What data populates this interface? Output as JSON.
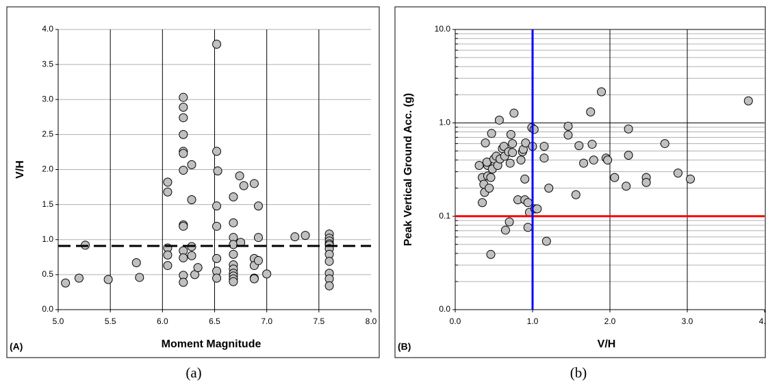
{
  "chart_data": [
    {
      "type": "scatter",
      "xlabel": "Moment Magnitude",
      "ylabel": "V/H",
      "panel_label": "(A)",
      "caption": "(a)",
      "x": [
        5.07,
        5.2,
        5.26,
        5.48,
        5.75,
        5.78,
        6.05,
        6.05,
        6.05,
        6.05,
        6.05,
        6.2,
        6.2,
        6.2,
        6.2,
        6.2,
        6.2,
        6.2,
        6.2,
        6.2,
        6.2,
        6.2,
        6.2,
        6.2,
        6.28,
        6.28,
        6.28,
        6.28,
        6.31,
        6.34,
        6.52,
        6.52,
        6.53,
        6.52,
        6.52,
        6.52,
        6.52,
        6.52,
        6.68,
        6.68,
        6.68,
        6.68,
        6.68,
        6.68,
        6.68,
        6.68,
        6.68,
        6.68,
        6.68,
        6.74,
        6.75,
        6.78,
        6.88,
        6.88,
        6.88,
        6.88,
        6.88,
        6.92,
        6.92,
        6.92,
        7.0,
        7.27,
        7.37,
        7.6,
        7.6,
        7.6,
        7.6,
        7.6,
        7.6,
        7.6,
        7.6,
        7.6,
        7.6,
        7.6
      ],
      "values": [
        0.38,
        0.45,
        0.92,
        0.43,
        0.67,
        0.46,
        1.82,
        1.68,
        0.88,
        0.78,
        0.63,
        3.03,
        2.89,
        2.74,
        2.5,
        2.26,
        2.23,
        1.99,
        1.21,
        1.19,
        0.84,
        0.74,
        0.49,
        0.39,
        2.07,
        1.57,
        0.9,
        0.77,
        0.5,
        0.6,
        3.79,
        2.26,
        1.98,
        1.48,
        1.19,
        0.73,
        0.55,
        0.45,
        1.61,
        1.24,
        1.03,
        0.93,
        0.79,
        0.64,
        0.58,
        0.52,
        0.48,
        0.44,
        0.4,
        1.91,
        0.96,
        1.77,
        1.8,
        0.73,
        0.63,
        0.45,
        0.44,
        1.48,
        1.03,
        0.7,
        0.51,
        1.04,
        1.06,
        1.08,
        1.02,
        0.98,
        0.94,
        0.92,
        0.87,
        0.79,
        0.69,
        0.52,
        0.44,
        0.34
      ],
      "color": "#c0c0c0",
      "xlim": [
        5,
        8
      ],
      "ylim": [
        0,
        4
      ],
      "xticks": [
        {
          "value": 5,
          "label": "5.0"
        },
        5.5,
        {
          "value": 6,
          "label": "6.0"
        },
        6.5,
        {
          "value": 7,
          "label": "7.0"
        },
        7.5,
        {
          "value": 8,
          "label": "8.0"
        }
      ],
      "yticks": [
        {
          "value": 0,
          "label": "0.0"
        },
        0.5,
        {
          "value": 1,
          "label": "1.0"
        },
        1.5,
        {
          "value": 2,
          "label": "2.0"
        },
        2.5,
        {
          "value": 3,
          "label": "3.0"
        },
        3.5,
        {
          "value": 4,
          "label": "4.0"
        }
      ],
      "log_y": false,
      "xgrid_color": "#000000",
      "ygrid_color": "#b0b0b0",
      "minor_grid": false,
      "hlines": [
        {
          "value": 0.91,
          "color": "#000000",
          "dashed": true
        }
      ],
      "vlines": []
    },
    {
      "type": "scatter",
      "xlabel": "V/H",
      "ylabel": "Peak Vertical Ground Acc. (g)",
      "panel_label": "(B)",
      "caption": "(b)",
      "x": [
        0.31,
        0.35,
        0.37,
        0.35,
        0.38,
        0.39,
        0.42,
        0.42,
        0.41,
        0.44,
        0.46,
        0.47,
        0.48,
        0.5,
        0.46,
        0.53,
        0.55,
        0.57,
        0.58,
        0.61,
        0.63,
        0.64,
        0.65,
        0.69,
        0.71,
        0.7,
        0.72,
        0.74,
        0.74,
        0.76,
        0.81,
        0.87,
        0.88,
        0.85,
        0.9,
        0.9,
        0.94,
        0.91,
        0.94,
        0.96,
        0.99,
        1.02,
        1.0,
        1.03,
        1.06,
        1.15,
        1.15,
        1.18,
        1.21,
        1.46,
        1.46,
        1.56,
        1.6,
        1.66,
        1.75,
        1.77,
        1.79,
        1.89,
        1.95,
        1.97,
        2.06,
        2.21,
        2.24,
        2.24,
        2.47,
        2.47,
        2.71,
        2.88,
        3.04,
        3.79
      ],
      "values": [
        0.35,
        0.26,
        0.22,
        0.14,
        0.18,
        0.61,
        0.35,
        0.27,
        0.38,
        0.2,
        0.26,
        0.77,
        0.32,
        0.41,
        0.039,
        0.44,
        0.35,
        1.07,
        0.41,
        0.53,
        0.56,
        0.44,
        0.071,
        0.49,
        0.37,
        0.087,
        0.75,
        0.6,
        0.48,
        1.27,
        0.15,
        0.49,
        0.52,
        0.4,
        0.25,
        0.15,
        0.14,
        0.61,
        0.076,
        0.11,
        0.89,
        0.85,
        0.56,
        0.12,
        0.12,
        0.56,
        0.42,
        0.054,
        0.2,
        0.92,
        0.74,
        0.17,
        0.57,
        0.37,
        1.31,
        0.59,
        0.4,
        2.15,
        0.42,
        0.4,
        0.26,
        0.21,
        0.86,
        0.45,
        0.26,
        0.23,
        0.6,
        0.29,
        0.25,
        1.72
      ],
      "color": "#c0c0c0",
      "xlim": [
        0,
        4
      ],
      "ylim": [
        0.01,
        10
      ],
      "xticks": [
        {
          "value": 0,
          "label": "0.0"
        },
        {
          "value": 1,
          "label": "1.0"
        },
        {
          "value": 2,
          "label": "2.0"
        },
        {
          "value": 3,
          "label": "3.0"
        },
        {
          "value": 4,
          "label": "4.0"
        }
      ],
      "yticks": [
        {
          "value": 0.01,
          "label": "0.0"
        },
        0.1,
        {
          "value": 1,
          "label": "1.0"
        },
        {
          "value": 10,
          "label": "10.0"
        }
      ],
      "log_y": true,
      "xgrid_color": "#000000",
      "ygrid_color": "#000000",
      "minor_grid": true,
      "hlines": [
        {
          "value": 0.1,
          "color": "#ff0000",
          "dashed": false
        }
      ],
      "vlines": [
        {
          "value": 1,
          "color": "#0000ff",
          "dashed": false
        }
      ]
    }
  ]
}
